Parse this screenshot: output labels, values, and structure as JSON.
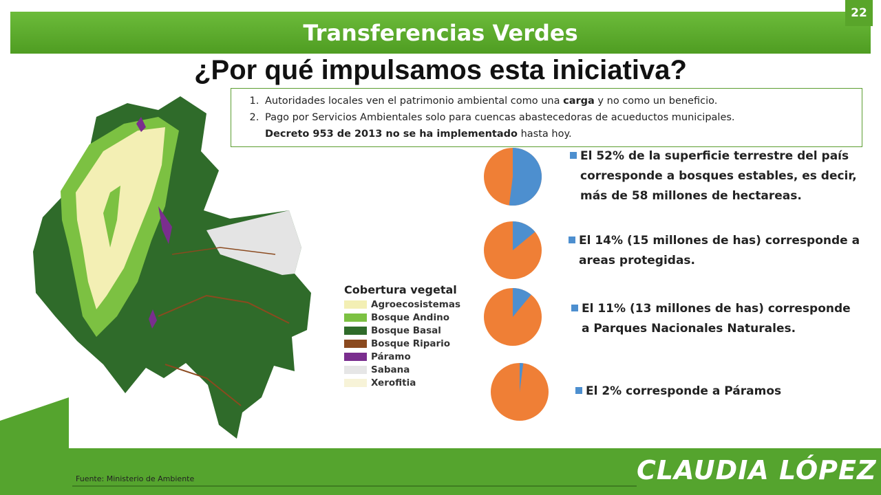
{
  "slide": {
    "title": "Transferencias Verdes",
    "number": "22",
    "headline": "¿Por qué impulsamos esta iniciativa?"
  },
  "reasons": {
    "item1": {
      "num": "1.",
      "pre": "Autoridades locales ven el patrimonio ambiental como una ",
      "bold": "carga",
      "post": " y no como un beneficio."
    },
    "item2": {
      "num": "2.",
      "line1": "Pago por Servicios Ambientales solo para cuencas abastecedoras de acueductos municipales.",
      "bold": "Decreto 953 de 2013 no se ha implementado",
      "post": " hasta hoy."
    }
  },
  "legend": {
    "title": "Cobertura vegetal",
    "items": [
      {
        "label": "Agroecosistemas",
        "color": "#f3efb4"
      },
      {
        "label": "Bosque Andino",
        "color": "#7cc142"
      },
      {
        "label": "Bosque Basal",
        "color": "#2f6b2a"
      },
      {
        "label": "Bosque Ripario",
        "color": "#8b4a1f"
      },
      {
        "label": "Páramo",
        "color": "#7a2e8e"
      },
      {
        "label": "Sabana",
        "color": "#e6e6e6"
      },
      {
        "label": "Xerofitia",
        "color": "#f7f3d8"
      }
    ]
  },
  "stats": [
    {
      "percent": 52,
      "lines": [
        "El 52% de la superficie terrestre del país",
        "corresponde a bosques estables, es decir,",
        "más de 58 millones de hectareas."
      ]
    },
    {
      "percent": 14,
      "lines": [
        "El 14% (15 millones de has) corresponde a",
        "areas protegidas."
      ]
    },
    {
      "percent": 11,
      "lines": [
        "El 11% (13 millones de has) corresponde",
        "a Parques Nacionales Naturales."
      ]
    },
    {
      "percent": 2,
      "lines": [
        "El 2% corresponde a Páramos"
      ]
    }
  ],
  "colors": {
    "green": "#55a42e",
    "pie_blue": "#4d8fcf",
    "pie_orange": "#ef7f36"
  },
  "footer": {
    "source": "Fuente: Ministerio de Ambiente",
    "brand": "CLAUDIA LÓPEZ"
  }
}
